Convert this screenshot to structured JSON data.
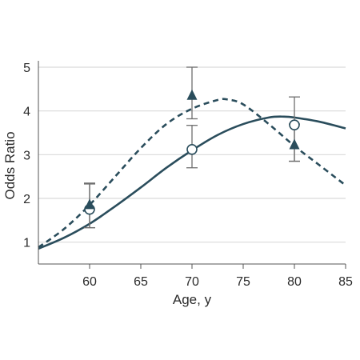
{
  "chart_data": {
    "type": "line",
    "title": "",
    "xlabel": "Age, y",
    "ylabel": "Odds Ratio",
    "xlim": [
      55,
      85
    ],
    "ylim": [
      0.5,
      5
    ],
    "grid": "horizontal",
    "x_ticks": [
      60,
      65,
      70,
      75,
      80,
      85
    ],
    "y_ticks": [
      1,
      2,
      3,
      4,
      5
    ],
    "colors": {
      "series": "#2a4d5c",
      "grid": "#d9d9d9",
      "axis": "#555555",
      "error": "#6e6e6e"
    },
    "series": [
      {
        "style": "solid",
        "marker": "circle-open",
        "curve_x": [
          55,
          57.5,
          60,
          62.5,
          65,
          67.5,
          70,
          72.5,
          75,
          77.5,
          79,
          80,
          82.5,
          85
        ],
        "curve_y": [
          0.85,
          1.1,
          1.42,
          1.82,
          2.25,
          2.7,
          3.1,
          3.45,
          3.7,
          3.85,
          3.87,
          3.85,
          3.75,
          3.6
        ],
        "points": [
          {
            "x": 60,
            "y": 1.75,
            "lo": 1.33,
            "hi": 2.33
          },
          {
            "x": 70,
            "y": 3.12,
            "lo": 2.7,
            "hi": 3.67
          },
          {
            "x": 80,
            "y": 3.68,
            "lo": 2.85,
            "hi": 4.32
          }
        ]
      },
      {
        "style": "dashed",
        "marker": "triangle-filled",
        "curve_x": [
          55,
          57.5,
          60,
          62.5,
          65,
          67.5,
          70,
          72.5,
          73.5,
          75,
          77.5,
          80,
          82.5,
          85
        ],
        "curve_y": [
          0.88,
          1.3,
          1.85,
          2.5,
          3.15,
          3.7,
          4.05,
          4.25,
          4.26,
          4.15,
          3.7,
          3.2,
          2.75,
          2.3
        ],
        "points": [
          {
            "x": 60,
            "y": 1.85,
            "lo": 1.33,
            "hi": 2.35
          },
          {
            "x": 70,
            "y": 4.35,
            "lo": 3.82,
            "hi": 5.0
          },
          {
            "x": 80,
            "y": 3.22,
            "lo": 2.85,
            "hi": 3.7
          }
        ]
      }
    ]
  }
}
